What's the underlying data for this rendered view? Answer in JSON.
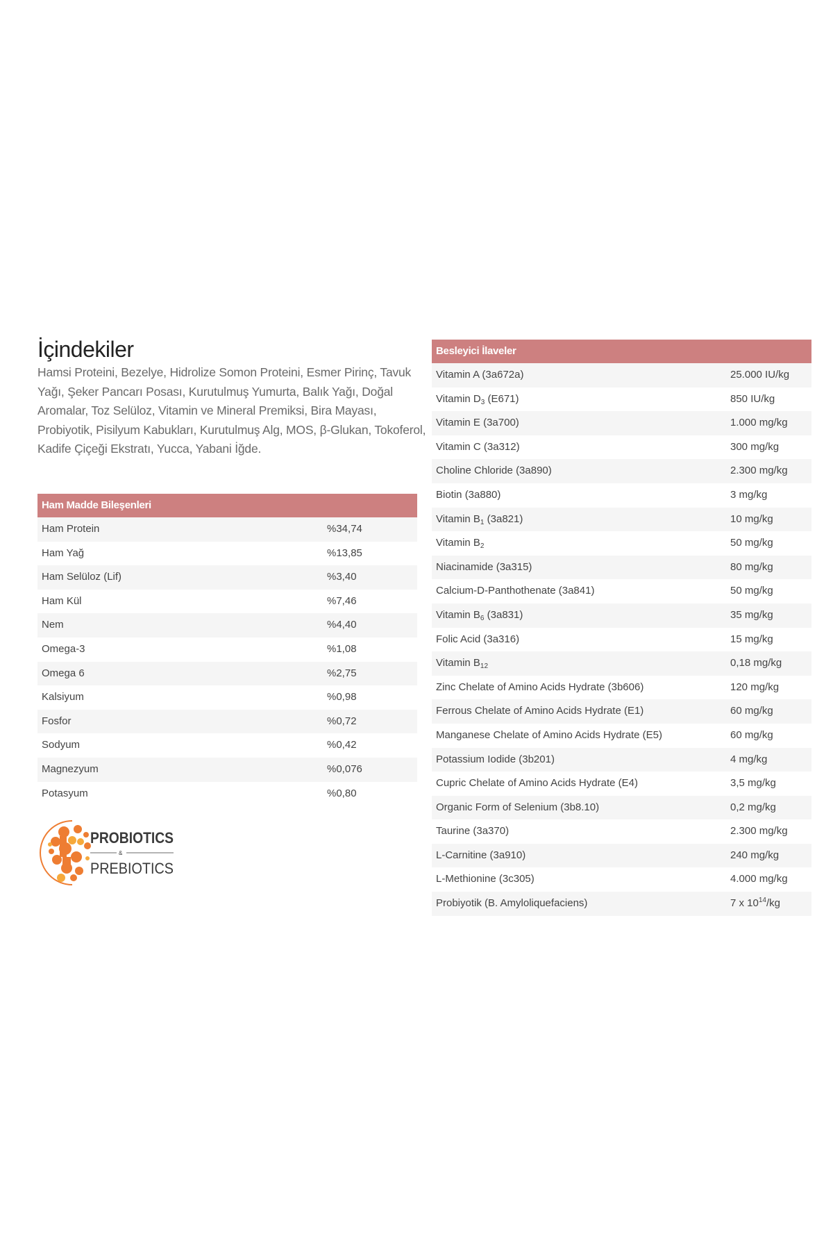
{
  "title": "İçindekiler",
  "ingredients": "Hamsi Proteini, Bezelye, Hidrolize Somon Proteini, Esmer Pirinç, Tavuk Yağı, Şeker Pancarı Posası, Kurutulmuş Yumurta, Balık Yağı, Doğal Aromalar, Toz Selüloz, Vitamin ve Mineral Premiksi, Bira Mayası, Probiyotik, Pisilyum Kabukları, Kurutulmuş Alg, MOS, β-Glukan, Tokoferol, Kadife Çiçeği Ekstratı, Yucca, Yabani İğde.",
  "raw_materials": {
    "header": "Ham Madde Bileşenleri",
    "rows": [
      {
        "name": "Ham Protein",
        "value": "%34,74"
      },
      {
        "name": "Ham Yağ",
        "value": "%13,85"
      },
      {
        "name": "Ham Selüloz (Lif)",
        "value": "%3,40"
      },
      {
        "name": "Ham Kül",
        "value": "%7,46"
      },
      {
        "name": "Nem",
        "value": "%4,40"
      },
      {
        "name": "Omega-3",
        "value": "%1,08"
      },
      {
        "name": "Omega 6",
        "value": "%2,75"
      },
      {
        "name": "Kalsiyum",
        "value": "%0,98"
      },
      {
        "name": "Fosfor",
        "value": "%0,72"
      },
      {
        "name": "Sodyum",
        "value": "%0,42"
      },
      {
        "name": "Magnezyum",
        "value": "%0,076"
      },
      {
        "name": "Potasyum",
        "value": "%0,80"
      }
    ]
  },
  "additives": {
    "header": "Besleyici İlaveler",
    "rows": [
      {
        "name": "Vitamin A (3a672a)",
        "value": "25.000 IU/kg"
      },
      {
        "name": "Vitamin D",
        "sub": "3",
        "suffix": " (E671)",
        "value": "850 IU/kg"
      },
      {
        "name": "Vitamin E (3a700)",
        "value": "1.000 mg/kg"
      },
      {
        "name": "Vitamin C (3a312)",
        "value": "300 mg/kg"
      },
      {
        "name": "Choline Chloride (3a890)",
        "value": "2.300 mg/kg"
      },
      {
        "name": "Biotin (3a880)",
        "value": "3 mg/kg"
      },
      {
        "name": "Vitamin B",
        "sub": "1",
        "suffix": " (3a821)",
        "value": "10 mg/kg"
      },
      {
        "name": "Vitamin B",
        "sub": "2",
        "suffix": "",
        "value": "50 mg/kg"
      },
      {
        "name": "Niacinamide (3a315)",
        "value": "80 mg/kg"
      },
      {
        "name": "Calcium-D-Panthothenate (3a841)",
        "value": "50 mg/kg"
      },
      {
        "name": "Vitamin B",
        "sub": "6",
        "suffix": " (3a831)",
        "value": "35 mg/kg"
      },
      {
        "name": "Folic Acid (3a316)",
        "value": "15 mg/kg"
      },
      {
        "name": "Vitamin B",
        "sub": "12",
        "suffix": "",
        "value": "0,18 mg/kg"
      },
      {
        "name": "Zinc Chelate of Amino Acids Hydrate (3b606)",
        "value": "120 mg/kg"
      },
      {
        "name": "Ferrous Chelate of Amino Acids Hydrate (E1)",
        "value": "60 mg/kg"
      },
      {
        "name": "Manganese Chelate of Amino Acids Hydrate (E5)",
        "value": "60 mg/kg"
      },
      {
        "name": "Potassium Iodide (3b201)",
        "value": "4 mg/kg"
      },
      {
        "name": "Cupric Chelate of Amino Acids Hydrate (E4)",
        "value": "3,5 mg/kg"
      },
      {
        "name": "Organic Form of Selenium (3b8.10)",
        "value": "0,2 mg/kg"
      },
      {
        "name": "Taurine (3a370)",
        "value": "2.300 mg/kg"
      },
      {
        "name": "L-Carnitine (3a910)",
        "value": "240 mg/kg"
      },
      {
        "name": "L-Methionine (3c305)",
        "value": "4.000 mg/kg"
      },
      {
        "name": "Probiyotik (B. Amyloliquefaciens)",
        "value": "7 x 10",
        "value_sup": "14",
        "value_suffix": "/kg"
      }
    ]
  },
  "logo": {
    "line1": "PROBIOTICS",
    "amp": "&",
    "line2": "PREBIOTICS",
    "colors": {
      "orange": "#ee7d32",
      "light_orange": "#f6a93b",
      "text": "#3a3a3a"
    }
  },
  "colors": {
    "header_bg": "#cd8080",
    "stripe": "#f5f5f5",
    "body_text": "#6a6a6a"
  }
}
